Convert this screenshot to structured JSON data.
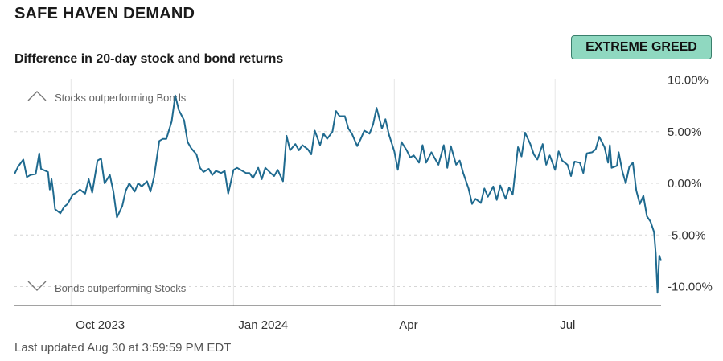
{
  "header": {
    "title": "SAFE HAVEN DEMAND",
    "subtitle": "Difference in 20-day stock and bond returns",
    "badge": "EXTREME GREED"
  },
  "footer": {
    "updated": "Last updated Aug 30 at 3:59:59 PM EDT"
  },
  "colors": {
    "line": "#1f6a8f",
    "badge_bg": "#8fd8c0",
    "badge_border": "#3a7f6c"
  },
  "chart_data": {
    "type": "line",
    "title": "Difference in 20-day stock and bond returns",
    "ylim": [
      -12,
      10
    ],
    "y_ticks": [
      10,
      5,
      0,
      -5,
      -10
    ],
    "y_tick_labels": [
      "10.00%",
      "5.00%",
      "0.00%",
      "-5.00%",
      "-10.00%"
    ],
    "x_ticks": [
      "2023-10-01",
      "2024-01-01",
      "2024-04-01",
      "2024-07-01"
    ],
    "x_tick_labels": [
      "Oct 2023",
      "Jan 2024",
      "Apr",
      "Jul"
    ],
    "annotations": {
      "top": "Stocks outperforming Bonds",
      "bottom": "Bonds outperforming Stocks"
    },
    "grid": true,
    "series": [
      {
        "points": [
          [
            "2023-08-30",
            0.9
          ],
          [
            "2023-09-01",
            1.6
          ],
          [
            "2023-09-04",
            2.3
          ],
          [
            "2023-09-06",
            0.6
          ],
          [
            "2023-09-08",
            0.8
          ],
          [
            "2023-09-11",
            0.9
          ],
          [
            "2023-09-13",
            2.9
          ],
          [
            "2023-09-14",
            1.4
          ],
          [
            "2023-09-18",
            1.1
          ],
          [
            "2023-09-19",
            -0.6
          ],
          [
            "2023-09-20",
            0.4
          ],
          [
            "2023-09-21",
            -0.9
          ],
          [
            "2023-09-22",
            -2.5
          ],
          [
            "2023-09-25",
            -2.9
          ],
          [
            "2023-09-27",
            -2.3
          ],
          [
            "2023-09-29",
            -2.0
          ],
          [
            "2023-10-02",
            -1.1
          ],
          [
            "2023-10-04",
            -0.9
          ],
          [
            "2023-10-06",
            -0.6
          ],
          [
            "2023-10-09",
            -1.0
          ],
          [
            "2023-10-11",
            0.4
          ],
          [
            "2023-10-13",
            -0.9
          ],
          [
            "2023-10-16",
            2.2
          ],
          [
            "2023-10-18",
            2.4
          ],
          [
            "2023-10-20",
            0.0
          ],
          [
            "2023-10-23",
            0.8
          ],
          [
            "2023-10-25",
            -0.8
          ],
          [
            "2023-10-27",
            -3.3
          ],
          [
            "2023-10-30",
            -2.2
          ],
          [
            "2023-11-01",
            -0.7
          ],
          [
            "2023-11-03",
            0.0
          ],
          [
            "2023-11-06",
            -0.8
          ],
          [
            "2023-11-08",
            0.0
          ],
          [
            "2023-11-10",
            -0.3
          ],
          [
            "2023-11-13",
            0.2
          ],
          [
            "2023-11-15",
            -0.8
          ],
          [
            "2023-11-17",
            0.6
          ],
          [
            "2023-11-20",
            4.1
          ],
          [
            "2023-11-22",
            4.3
          ],
          [
            "2023-11-24",
            4.3
          ],
          [
            "2023-11-27",
            6.0
          ],
          [
            "2023-11-29",
            8.5
          ],
          [
            "2023-12-01",
            7.1
          ],
          [
            "2023-12-04",
            6.1
          ],
          [
            "2023-12-06",
            4.0
          ],
          [
            "2023-12-08",
            3.4
          ],
          [
            "2023-12-11",
            2.8
          ],
          [
            "2023-12-13",
            1.5
          ],
          [
            "2023-12-15",
            1.1
          ],
          [
            "2023-12-18",
            1.4
          ],
          [
            "2023-12-20",
            0.8
          ],
          [
            "2023-12-22",
            1.2
          ],
          [
            "2023-12-25",
            1.0
          ],
          [
            "2023-12-27",
            1.2
          ],
          [
            "2023-12-29",
            -1.0
          ],
          [
            "2024-01-01",
            1.3
          ],
          [
            "2024-01-03",
            1.5
          ],
          [
            "2024-01-05",
            1.3
          ],
          [
            "2024-01-08",
            1.0
          ],
          [
            "2024-01-10",
            1.0
          ],
          [
            "2024-01-12",
            0.5
          ],
          [
            "2024-01-15",
            1.5
          ],
          [
            "2024-01-17",
            0.4
          ],
          [
            "2024-01-19",
            1.5
          ],
          [
            "2024-01-22",
            1.0
          ],
          [
            "2024-01-24",
            0.7
          ],
          [
            "2024-01-26",
            1.3
          ],
          [
            "2024-01-29",
            0.2
          ],
          [
            "2024-01-31",
            4.6
          ],
          [
            "2024-02-02",
            3.2
          ],
          [
            "2024-02-05",
            3.8
          ],
          [
            "2024-02-07",
            3.2
          ],
          [
            "2024-02-09",
            3.7
          ],
          [
            "2024-02-12",
            3.3
          ],
          [
            "2024-02-14",
            2.8
          ],
          [
            "2024-02-16",
            5.1
          ],
          [
            "2024-02-19",
            3.7
          ],
          [
            "2024-02-21",
            4.8
          ],
          [
            "2024-02-23",
            4.3
          ],
          [
            "2024-02-26",
            5.0
          ],
          [
            "2024-02-28",
            7.0
          ],
          [
            "2024-03-01",
            6.5
          ],
          [
            "2024-03-04",
            6.5
          ],
          [
            "2024-03-06",
            5.3
          ],
          [
            "2024-03-08",
            4.8
          ],
          [
            "2024-03-11",
            3.6
          ],
          [
            "2024-03-13",
            4.3
          ],
          [
            "2024-03-15",
            5.1
          ],
          [
            "2024-03-18",
            4.8
          ],
          [
            "2024-03-20",
            5.7
          ],
          [
            "2024-03-22",
            7.3
          ],
          [
            "2024-03-25",
            5.3
          ],
          [
            "2024-03-27",
            6.2
          ],
          [
            "2024-03-29",
            4.7
          ],
          [
            "2024-04-01",
            3.1
          ],
          [
            "2024-04-03",
            1.3
          ],
          [
            "2024-04-05",
            4.0
          ],
          [
            "2024-04-08",
            3.2
          ],
          [
            "2024-04-10",
            2.5
          ],
          [
            "2024-04-12",
            2.7
          ],
          [
            "2024-04-15",
            2.0
          ],
          [
            "2024-04-17",
            3.7
          ],
          [
            "2024-04-19",
            2.0
          ],
          [
            "2024-04-22",
            3.0
          ],
          [
            "2024-04-24",
            2.4
          ],
          [
            "2024-04-26",
            1.8
          ],
          [
            "2024-04-29",
            3.7
          ],
          [
            "2024-05-01",
            1.5
          ],
          [
            "2024-05-03",
            3.6
          ],
          [
            "2024-05-06",
            1.8
          ],
          [
            "2024-05-08",
            2.2
          ],
          [
            "2024-05-10",
            1.0
          ],
          [
            "2024-05-13",
            -0.5
          ],
          [
            "2024-05-15",
            -2.0
          ],
          [
            "2024-05-17",
            -1.5
          ],
          [
            "2024-05-20",
            -1.9
          ],
          [
            "2024-05-22",
            -0.5
          ],
          [
            "2024-05-24",
            -1.3
          ],
          [
            "2024-05-27",
            -0.3
          ],
          [
            "2024-05-29",
            -1.6
          ],
          [
            "2024-05-31",
            -0.2
          ],
          [
            "2024-06-03",
            -1.5
          ],
          [
            "2024-06-05",
            -0.4
          ],
          [
            "2024-06-07",
            -1.1
          ],
          [
            "2024-06-10",
            3.5
          ],
          [
            "2024-06-12",
            2.6
          ],
          [
            "2024-06-14",
            4.9
          ],
          [
            "2024-06-17",
            3.8
          ],
          [
            "2024-06-19",
            2.8
          ],
          [
            "2024-06-21",
            2.3
          ],
          [
            "2024-06-24",
            3.8
          ],
          [
            "2024-06-26",
            1.8
          ],
          [
            "2024-06-28",
            2.7
          ],
          [
            "2024-07-01",
            1.3
          ],
          [
            "2024-07-03",
            3.1
          ],
          [
            "2024-07-05",
            2.2
          ],
          [
            "2024-07-08",
            1.8
          ],
          [
            "2024-07-10",
            0.7
          ],
          [
            "2024-07-12",
            2.1
          ],
          [
            "2024-07-15",
            2.0
          ],
          [
            "2024-07-17",
            1.0
          ],
          [
            "2024-07-19",
            2.9
          ],
          [
            "2024-07-22",
            3.0
          ],
          [
            "2024-07-24",
            3.3
          ],
          [
            "2024-07-26",
            4.5
          ],
          [
            "2024-07-29",
            3.5
          ],
          [
            "2024-07-31",
            2.0
          ],
          [
            "2024-08-01",
            3.7
          ],
          [
            "2024-08-02",
            1.5
          ],
          [
            "2024-08-05",
            1.7
          ],
          [
            "2024-08-06",
            3.0
          ],
          [
            "2024-08-08",
            1.2
          ],
          [
            "2024-08-10",
            0.0
          ],
          [
            "2024-08-12",
            1.6
          ],
          [
            "2024-08-14",
            2.0
          ],
          [
            "2024-08-16",
            -0.7
          ],
          [
            "2024-08-18",
            -2.0
          ],
          [
            "2024-08-20",
            -1.2
          ],
          [
            "2024-08-22",
            -3.2
          ],
          [
            "2024-08-24",
            -3.7
          ],
          [
            "2024-08-26",
            -4.7
          ],
          [
            "2024-08-27",
            -6.8
          ],
          [
            "2024-08-28",
            -10.6
          ],
          [
            "2024-08-29",
            -7.0
          ],
          [
            "2024-08-30",
            -7.5
          ]
        ]
      }
    ]
  }
}
